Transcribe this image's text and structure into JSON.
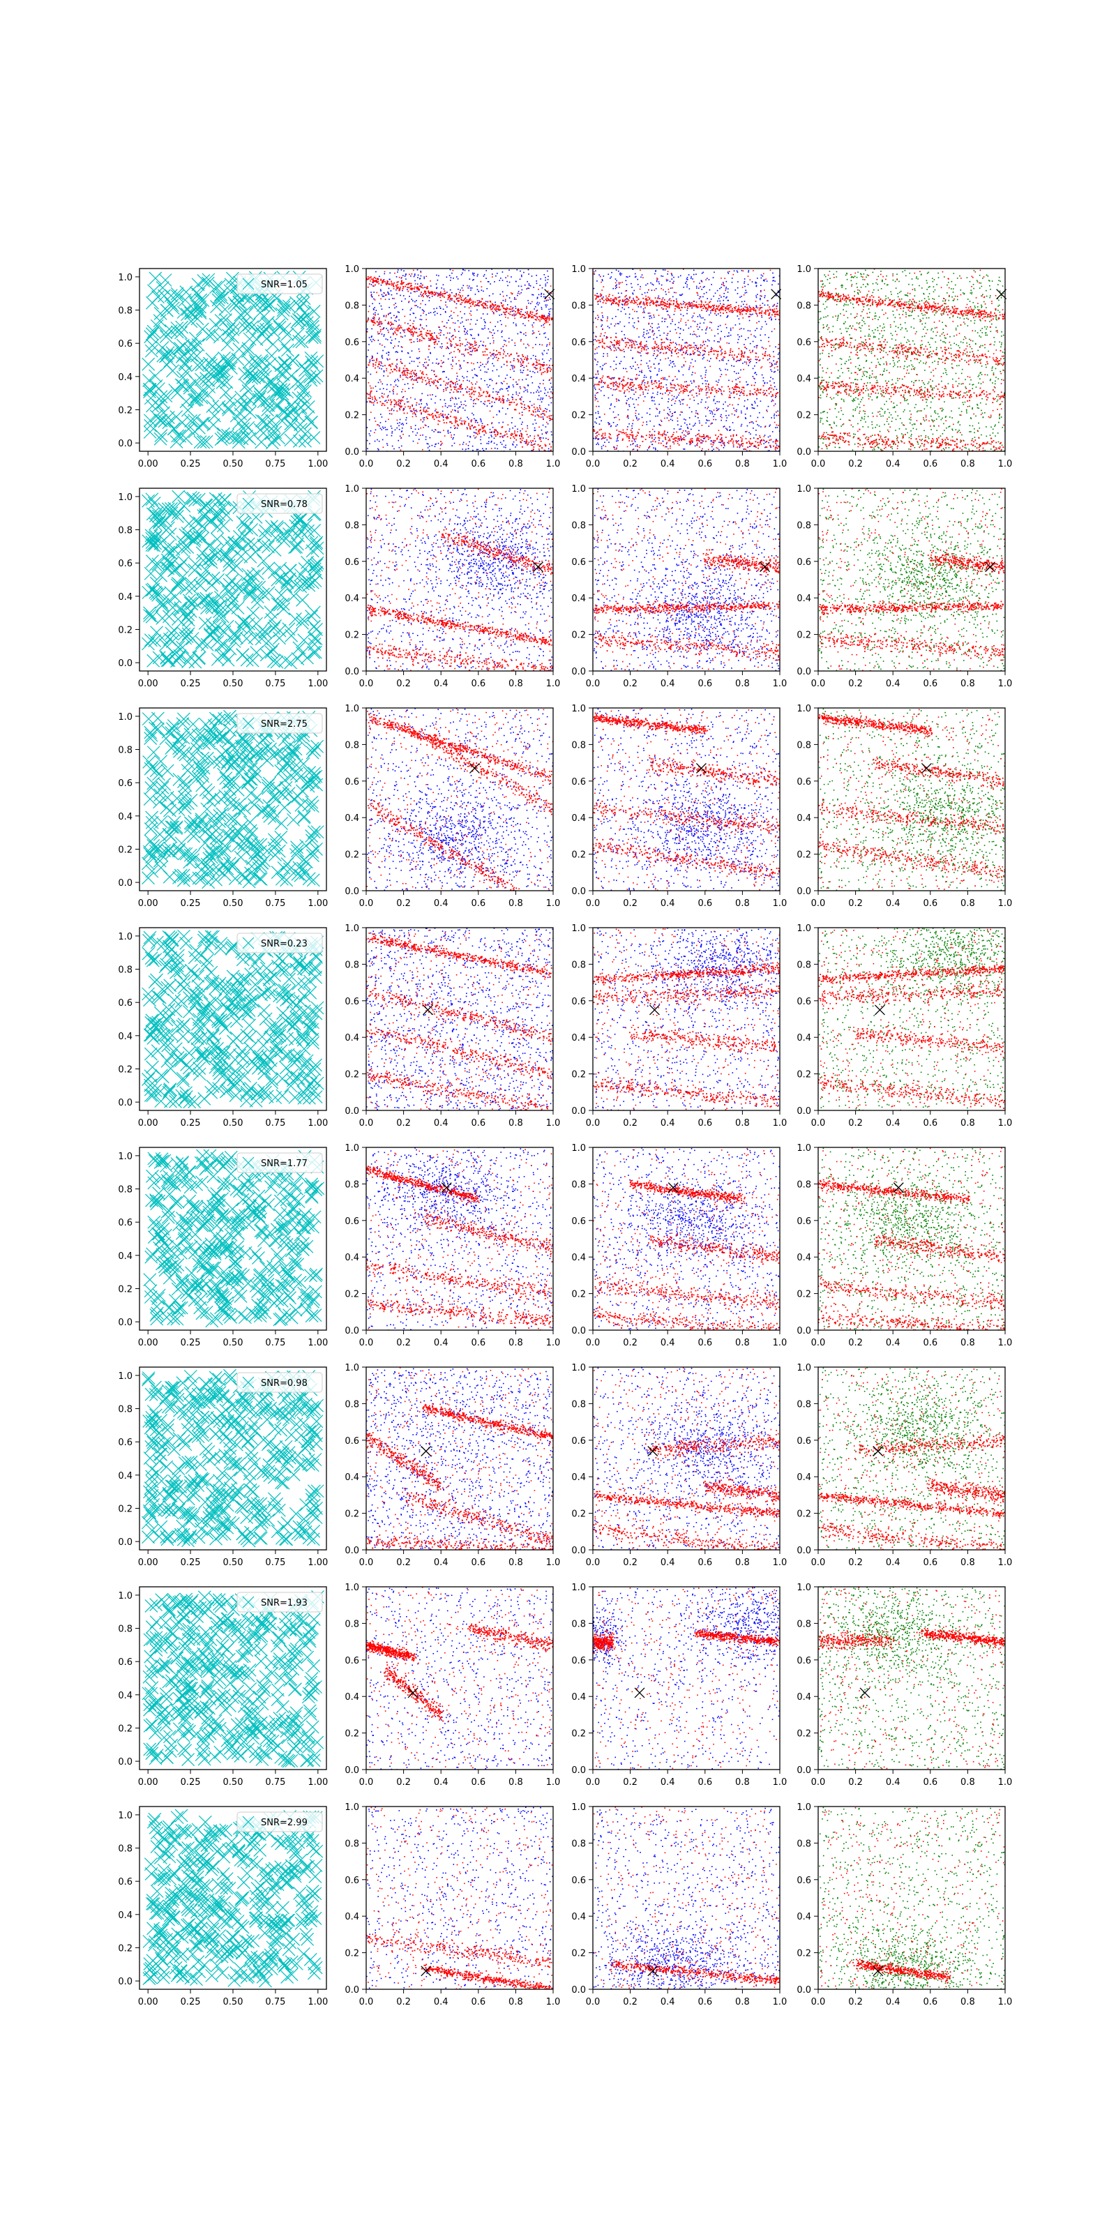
{
  "figure": {
    "grid": "8 rows x 4 columns of scatter panels",
    "colors": {
      "cyan_markers": "#00bfbf",
      "red_points": "#ff0000",
      "blue_points": "#0000ff",
      "green_points": "#008000",
      "true_location_marker": "#000000",
      "axes": "#000000",
      "background": "#ffffff"
    }
  },
  "chart_data": {
    "type": "scatter",
    "xlim": [
      0.0,
      1.0
    ],
    "ylim": [
      0.0,
      1.0
    ],
    "grid": false,
    "legend_placement": "upper right (column 1 only)",
    "col1_xticks": [
      "0.00",
      "0.25",
      "0.50",
      "0.75",
      "1.00"
    ],
    "col1_yticks": [
      "0.0",
      "0.2",
      "0.4",
      "0.6",
      "0.8",
      "1.0"
    ],
    "other_xticks": [
      "0.0",
      "0.2",
      "0.4",
      "0.6",
      "0.8",
      "1.0"
    ],
    "other_yticks": [
      "0.0",
      "0.2",
      "0.4",
      "0.6",
      "0.8",
      "1.0"
    ],
    "columns": [
      {
        "content": "cyan x markers (uniform)",
        "series": [
          "cyan"
        ]
      },
      {
        "content": "red + blue points",
        "series": [
          "red",
          "blue"
        ]
      },
      {
        "content": "red + blue points",
        "series": [
          "red",
          "blue"
        ]
      },
      {
        "content": "red + green points",
        "series": [
          "red",
          "green"
        ]
      }
    ],
    "rows": [
      {
        "legend": "SNR=1.05",
        "marker": [
          0.98,
          0.86
        ],
        "col2": {
          "stripes": [
            [
              0.0,
              0.95,
              1.0,
              0.72
            ],
            [
              0.0,
              0.72,
              1.0,
              0.45
            ],
            [
              0.0,
              0.5,
              1.0,
              0.2
            ],
            [
              0.0,
              0.3,
              1.0,
              0.02
            ]
          ]
        },
        "col3": {
          "stripes": [
            [
              0.0,
              0.84,
              1.0,
              0.76
            ],
            [
              0.0,
              0.6,
              1.0,
              0.52
            ],
            [
              0.0,
              0.38,
              1.0,
              0.32
            ],
            [
              0.0,
              0.1,
              1.0,
              0.04
            ]
          ]
        },
        "col4": {
          "stripes": [
            [
              0.0,
              0.86,
              1.0,
              0.74
            ],
            [
              0.0,
              0.6,
              1.0,
              0.5
            ],
            [
              0.0,
              0.36,
              1.0,
              0.3
            ],
            [
              0.0,
              0.08,
              1.0,
              0.02
            ]
          ]
        }
      },
      {
        "legend": "SNR=0.78",
        "marker": [
          0.92,
          0.57
        ],
        "col2": {
          "stripes": [
            [
              0.0,
              0.34,
              1.0,
              0.16
            ],
            [
              0.0,
              0.12,
              1.0,
              0.0
            ],
            [
              0.4,
              0.75,
              1.0,
              0.55
            ]
          ],
          "blueBlob": [
            0.7,
            0.6
          ]
        },
        "col3": {
          "stripes": [
            [
              0.0,
              0.34,
              1.0,
              0.36
            ],
            [
              0.0,
              0.18,
              1.0,
              0.1
            ],
            [
              0.6,
              0.62,
              1.0,
              0.57
            ]
          ],
          "blueBlob": [
            0.6,
            0.32
          ]
        },
        "col4": {
          "stripes": [
            [
              0.0,
              0.34,
              1.0,
              0.36
            ],
            [
              0.0,
              0.18,
              1.0,
              0.1
            ],
            [
              0.6,
              0.62,
              1.0,
              0.57
            ]
          ],
          "greenBlob": [
            0.6,
            0.5
          ]
        }
      },
      {
        "legend": "SNR=2.75",
        "marker": [
          0.58,
          0.67
        ],
        "col2": {
          "stripes": [
            [
              0.0,
              0.95,
              1.0,
              0.62
            ],
            [
              0.0,
              0.48,
              0.8,
              0.0
            ],
            [
              0.2,
              0.9,
              1.0,
              0.45
            ]
          ],
          "blueBlob": [
            0.5,
            0.3
          ]
        },
        "col3": {
          "stripes": [
            [
              0.0,
              0.95,
              0.6,
              0.88
            ],
            [
              0.3,
              0.7,
              1.0,
              0.6
            ],
            [
              0.0,
              0.45,
              1.0,
              0.35
            ],
            [
              0.0,
              0.25,
              1.0,
              0.1
            ]
          ],
          "blueBlob": [
            0.6,
            0.35
          ]
        },
        "col4": {
          "stripes": [
            [
              0.0,
              0.95,
              0.6,
              0.88
            ],
            [
              0.3,
              0.7,
              1.0,
              0.6
            ],
            [
              0.0,
              0.45,
              1.0,
              0.35
            ],
            [
              0.0,
              0.25,
              1.0,
              0.1
            ]
          ],
          "greenBlob": [
            0.7,
            0.4
          ]
        }
      },
      {
        "legend": "SNR=0.23",
        "marker": [
          0.33,
          0.55
        ],
        "col2": {
          "stripes": [
            [
              0.0,
              0.95,
              1.0,
              0.75
            ],
            [
              0.0,
              0.65,
              1.0,
              0.4
            ],
            [
              0.0,
              0.2,
              1.0,
              0.0
            ],
            [
              0.0,
              0.45,
              1.0,
              0.2
            ]
          ]
        },
        "col3": {
          "stripes": [
            [
              0.0,
              0.72,
              1.0,
              0.78
            ],
            [
              0.0,
              0.62,
              1.0,
              0.66
            ],
            [
              0.2,
              0.42,
              1.0,
              0.35
            ],
            [
              0.0,
              0.15,
              1.0,
              0.05
            ]
          ],
          "blueBlob": [
            0.7,
            0.78
          ]
        },
        "col4": {
          "stripes": [
            [
              0.0,
              0.72,
              1.0,
              0.78
            ],
            [
              0.0,
              0.62,
              1.0,
              0.66
            ],
            [
              0.2,
              0.42,
              1.0,
              0.35
            ],
            [
              0.0,
              0.15,
              1.0,
              0.05
            ]
          ],
          "greenBlob": [
            0.75,
            0.85
          ]
        }
      },
      {
        "legend": "SNR=1.77",
        "marker": [
          0.43,
          0.78
        ],
        "col2": {
          "stripes": [
            [
              0.0,
              0.88,
              0.6,
              0.72
            ],
            [
              0.0,
              0.35,
              1.0,
              0.2
            ],
            [
              0.0,
              0.15,
              1.0,
              0.05
            ],
            [
              0.3,
              0.62,
              1.0,
              0.45
            ]
          ],
          "blueBlob": [
            0.45,
            0.75
          ]
        },
        "col3": {
          "stripes": [
            [
              0.2,
              0.8,
              0.8,
              0.72
            ],
            [
              0.3,
              0.5,
              1.0,
              0.4
            ],
            [
              0.0,
              0.25,
              1.0,
              0.15
            ],
            [
              0.0,
              0.08,
              1.0,
              0.0
            ]
          ],
          "blueBlob": [
            0.55,
            0.6
          ]
        },
        "col4": {
          "stripes": [
            [
              0.0,
              0.8,
              0.8,
              0.72
            ],
            [
              0.3,
              0.5,
              1.0,
              0.4
            ],
            [
              0.0,
              0.25,
              1.0,
              0.15
            ],
            [
              0.0,
              0.08,
              1.0,
              0.0
            ]
          ],
          "greenBlob": [
            0.5,
            0.6
          ]
        }
      },
      {
        "legend": "SNR=0.98",
        "marker": [
          0.32,
          0.54
        ],
        "col2": {
          "stripes": [
            [
              0.3,
              0.78,
              1.0,
              0.62
            ],
            [
              0.0,
              0.62,
              0.4,
              0.35
            ],
            [
              0.2,
              0.3,
              1.0,
              0.05
            ],
            [
              0.0,
              0.05,
              1.0,
              0.0
            ]
          ]
        },
        "col3": {
          "stripes": [
            [
              0.0,
              0.3,
              1.0,
              0.2
            ],
            [
              0.0,
              0.12,
              1.0,
              0.0
            ],
            [
              0.3,
              0.55,
              1.0,
              0.6
            ],
            [
              0.6,
              0.35,
              1.0,
              0.3
            ]
          ],
          "blueBlob": [
            0.65,
            0.55
          ]
        },
        "col4": {
          "stripes": [
            [
              0.0,
              0.3,
              1.0,
              0.2
            ],
            [
              0.0,
              0.12,
              1.0,
              0.0
            ],
            [
              0.2,
              0.55,
              1.0,
              0.6
            ],
            [
              0.6,
              0.35,
              1.0,
              0.3
            ]
          ],
          "greenBlob": [
            0.55,
            0.65
          ]
        }
      },
      {
        "legend": "SNR=1.93",
        "marker": [
          0.25,
          0.42
        ],
        "col2": {
          "stripes": [
            [
              0.0,
              0.68,
              0.25,
              0.62
            ],
            [
              0.55,
              0.78,
              1.0,
              0.68
            ],
            [
              0.1,
              0.55,
              0.4,
              0.3
            ]
          ],
          "sparse": true
        },
        "col3": {
          "stripes": [
            [
              0.55,
              0.75,
              1.0,
              0.7
            ],
            [
              0.0,
              0.7,
              0.1,
              0.7
            ]
          ],
          "blueBlob": [
            0.85,
            0.8
          ],
          "blueBlob2": [
            0.05,
            0.72
          ]
        },
        "col4": {
          "stripes": [
            [
              0.55,
              0.75,
              1.0,
              0.7
            ],
            [
              0.0,
              0.7,
              0.4,
              0.72
            ]
          ],
          "greenBlob": [
            0.4,
            0.75
          ]
        }
      },
      {
        "legend": "SNR=2.99",
        "marker": [
          0.32,
          0.1
        ],
        "col2": {
          "stripes": [
            [
              0.3,
              0.12,
              1.0,
              0.0
            ],
            [
              0.0,
              0.28,
              1.0,
              0.15
            ]
          ],
          "sparse": true
        },
        "col3": {
          "stripes": [
            [
              0.1,
              0.14,
              1.0,
              0.05
            ]
          ],
          "blueBlob": [
            0.45,
            0.12
          ]
        },
        "col4": {
          "stripes": [
            [
              0.2,
              0.14,
              0.7,
              0.07
            ]
          ],
          "greenBlob": [
            0.5,
            0.1
          ]
        }
      }
    ]
  }
}
